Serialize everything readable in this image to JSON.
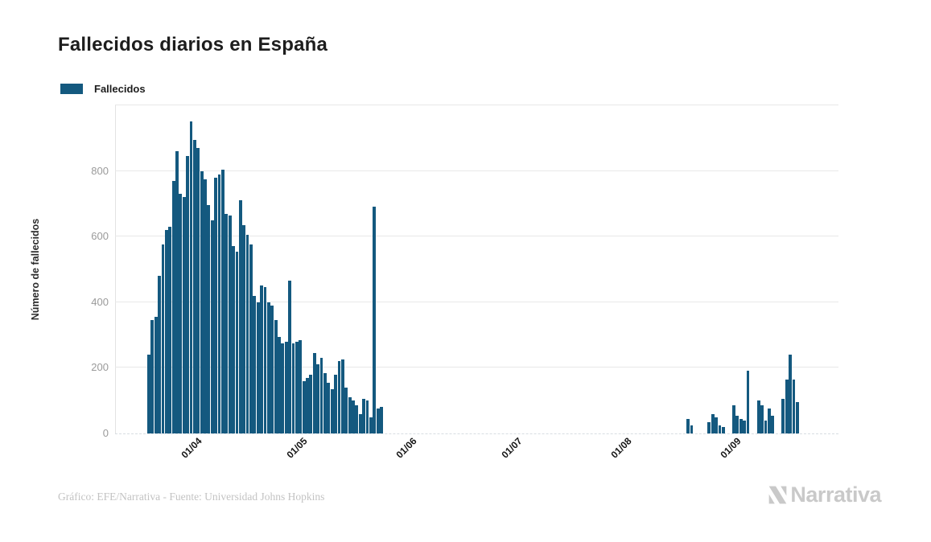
{
  "title": "Fallecidos diarios en España",
  "legend": {
    "label": "Fallecidos",
    "color": "#14597f"
  },
  "y_axis": {
    "title": "Número de fallecidos",
    "ticks": [
      0,
      200,
      400,
      600,
      800
    ],
    "max": 1000
  },
  "x_axis": {
    "tick_labels": [
      "01/04",
      "01/05",
      "01/06",
      "01/07",
      "01/08",
      "01/09"
    ]
  },
  "footer": {
    "credit": "Gráfico: EFE/Narrativa - Fuente: Universidad Johns Hopkins",
    "brand": "Narrativa"
  },
  "chart_data": {
    "type": "bar",
    "title": "Fallecidos diarios en España",
    "series_name": "Fallecidos",
    "xlabel": "",
    "ylabel": "Número de fallecidos",
    "ylim": [
      0,
      1000
    ],
    "grid": true,
    "legend_position": "top-left",
    "bar_color": "#14597f",
    "start_date": "2020-03-20",
    "x_tick_labels": [
      "01/04",
      "01/05",
      "01/06",
      "01/07",
      "01/08",
      "01/09"
    ],
    "x_tick_day_offsets": [
      12,
      42,
      73,
      103,
      134,
      165
    ],
    "values": [
      240,
      345,
      355,
      480,
      575,
      620,
      630,
      770,
      860,
      730,
      720,
      845,
      950,
      895,
      870,
      800,
      775,
      695,
      650,
      780,
      790,
      805,
      670,
      665,
      570,
      555,
      710,
      635,
      605,
      575,
      420,
      400,
      450,
      445,
      400,
      390,
      345,
      295,
      275,
      280,
      465,
      275,
      280,
      285,
      160,
      170,
      180,
      245,
      210,
      230,
      185,
      155,
      135,
      180,
      220,
      225,
      140,
      110,
      100,
      85,
      60,
      105,
      100,
      50,
      690,
      75,
      80,
      0,
      0,
      0,
      0,
      0,
      0,
      0,
      0,
      0,
      0,
      0,
      0,
      0,
      0,
      0,
      0,
      0,
      0,
      0,
      0,
      0,
      0,
      0,
      0,
      0,
      0,
      0,
      0,
      0,
      0,
      0,
      0,
      0,
      0,
      0,
      0,
      0,
      0,
      0,
      0,
      0,
      0,
      0,
      0,
      0,
      0,
      0,
      0,
      0,
      0,
      0,
      0,
      0,
      0,
      0,
      0,
      0,
      0,
      0,
      0,
      0,
      0,
      0,
      0,
      0,
      0,
      0,
      0,
      0,
      0,
      0,
      0,
      0,
      0,
      0,
      0,
      0,
      0,
      0,
      0,
      0,
      0,
      0,
      0,
      0,
      0,
      45,
      25,
      0,
      0,
      0,
      0,
      35,
      60,
      50,
      25,
      20,
      0,
      0,
      85,
      55,
      45,
      40,
      190,
      0,
      0,
      100,
      85,
      40,
      75,
      55,
      0,
      0,
      105,
      165,
      240,
      165,
      95
    ]
  }
}
